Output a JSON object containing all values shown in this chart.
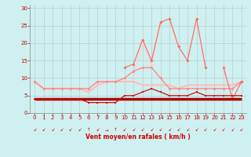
{
  "x": [
    0,
    1,
    2,
    3,
    4,
    5,
    6,
    7,
    8,
    9,
    10,
    11,
    12,
    13,
    14,
    15,
    16,
    17,
    18,
    19,
    20,
    21,
    22,
    23
  ],
  "line_flat_y": [
    4,
    4,
    4,
    4,
    4,
    4,
    4,
    4,
    4,
    4,
    4,
    4,
    4,
    4,
    4,
    4,
    4,
    4,
    4,
    4,
    4,
    4,
    4,
    4
  ],
  "line_low_y": [
    4,
    4,
    4,
    4,
    4,
    4,
    3,
    3,
    3,
    3,
    5,
    5,
    6,
    7,
    6,
    5,
    5,
    5,
    6,
    5,
    5,
    5,
    5,
    5
  ],
  "line_med_y": [
    9,
    7,
    7,
    7,
    7,
    7,
    6,
    8,
    9,
    9,
    9,
    9,
    8,
    8,
    8,
    8,
    7,
    8,
    8,
    8,
    8,
    8,
    8,
    9
  ],
  "line_high_y": [
    9,
    7,
    7,
    7,
    7,
    7,
    7,
    9,
    9,
    9,
    10,
    12,
    13,
    13,
    10,
    7,
    7,
    7,
    7,
    7,
    7,
    7,
    7,
    9
  ],
  "line_peak1_y": [
    null,
    null,
    null,
    null,
    null,
    null,
    3,
    3,
    3,
    3,
    null,
    11,
    20,
    14,
    26,
    27,
    19,
    15,
    27,
    13,
    null,
    14,
    4,
    9
  ],
  "line_peak2_y": [
    null,
    null,
    null,
    null,
    null,
    null,
    null,
    null,
    null,
    null,
    13,
    14,
    21,
    15,
    26,
    27,
    19,
    15,
    27,
    13,
    null,
    13,
    4,
    9
  ],
  "xlabel": "Vent moyen/en rafales ( km/h )",
  "xlim": [
    -0.5,
    23.5
  ],
  "ylim": [
    0,
    31
  ],
  "yticks": [
    0,
    5,
    10,
    15,
    20,
    25,
    30
  ],
  "xticks": [
    0,
    1,
    2,
    3,
    4,
    5,
    6,
    7,
    8,
    9,
    10,
    11,
    12,
    13,
    14,
    15,
    16,
    17,
    18,
    19,
    20,
    21,
    22,
    23
  ],
  "bg_color": "#cff0f0",
  "grid_color": "#b0c8c8",
  "color_flat": "#aa0000",
  "color_low": "#cc1111",
  "color_med": "#ffbbbb",
  "color_high": "#ff8888",
  "color_peak1": "#ffcccc",
  "color_peak2": "#ff6666"
}
